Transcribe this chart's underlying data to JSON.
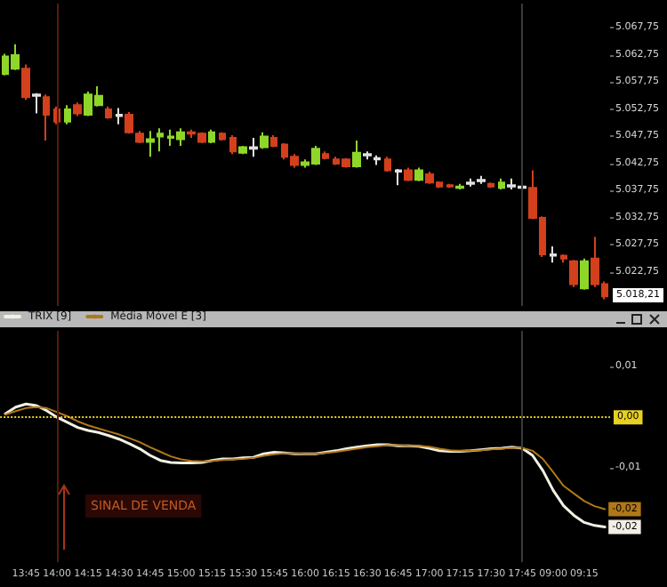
{
  "chart_data": [
    {
      "type": "candlestick",
      "tick_labels": "y",
      "categories": [
        null,
        null,
        "13:45",
        null,
        null,
        "14:00",
        null,
        null,
        "14:15",
        null,
        null,
        "14:30",
        null,
        null,
        "14:45",
        null,
        null,
        "15:00",
        null,
        null,
        "15:15",
        null,
        null,
        "15:30",
        null,
        null,
        "15:45",
        null,
        null,
        "16:00",
        null,
        null,
        "16:15",
        null,
        null,
        "16:30",
        null,
        null,
        "16:45",
        null,
        null,
        "17:00",
        null,
        null,
        "17:15",
        null,
        null,
        "17:30",
        null,
        null,
        "17:45",
        null,
        null,
        "09:00",
        null,
        null,
        "09:15",
        null,
        null
      ],
      "ohlc": [
        [
          5059.25,
          5063,
          5059,
          5062.5
        ],
        [
          5060.25,
          5064.75,
          5060,
          5062.75
        ],
        [
          5060.25,
          5061,
          5054.5,
          5055
        ],
        [
          5055.5,
          5055.75,
          5052,
          5055.25
        ],
        [
          5055,
          5055.5,
          5047,
          5051.75
        ],
        [
          5052.75,
          5053.25,
          5050,
          5050.5
        ],
        [
          5050.5,
          5053.5,
          5050,
          5052.75
        ],
        [
          5053.5,
          5054,
          5051.5,
          5052
        ],
        [
          5051.75,
          5056,
          5051.5,
          5055.5
        ],
        [
          5053.5,
          5057,
          5053.25,
          5055.25
        ],
        [
          5052.75,
          5053.25,
          5051,
          5051.25
        ],
        [
          5051.75,
          5053,
          5050,
          5051.5
        ],
        [
          5051.75,
          5052.25,
          5048.25,
          5048.5
        ],
        [
          5048.25,
          5048.75,
          5046.5,
          5046.75
        ],
        [
          5046.75,
          5048.75,
          5044,
          5047.25
        ],
        [
          5047.75,
          5049.25,
          5045,
          5048.25
        ],
        [
          5047.5,
          5049,
          5046,
          5047.75
        ],
        [
          5047.25,
          5049.25,
          5046,
          5048.5
        ],
        [
          5048.5,
          5049,
          5047.5,
          5048.25
        ],
        [
          5048.25,
          5048.5,
          5046.5,
          5046.75
        ],
        [
          5046.75,
          5049,
          5046.5,
          5048.5
        ],
        [
          5048.25,
          5048.5,
          5047,
          5047.25
        ],
        [
          5047.5,
          5048,
          5044.5,
          5045
        ],
        [
          5044.75,
          5046,
          5044.5,
          5045.75
        ],
        [
          5045.75,
          5047.5,
          5044,
          5045.5
        ],
        [
          5045.75,
          5048.5,
          5045.5,
          5047.75
        ],
        [
          5047.5,
          5048,
          5045.75,
          5046
        ],
        [
          5046.25,
          5046.5,
          5043.5,
          5044
        ],
        [
          5044,
          5044.5,
          5042,
          5042.5
        ],
        [
          5042.5,
          5043.5,
          5042,
          5043
        ],
        [
          5042.75,
          5046,
          5042.5,
          5045.5
        ],
        [
          5044.5,
          5045,
          5043.5,
          5043.75
        ],
        [
          5043.5,
          5044,
          5042.5,
          5042.75
        ],
        [
          5043.5,
          5043.75,
          5042,
          5042.25
        ],
        [
          5042.25,
          5047,
          5042,
          5044.75
        ],
        [
          5044.5,
          5045,
          5043.5,
          5044.25
        ],
        [
          5043.75,
          5044.25,
          5042.5,
          5043.5
        ],
        [
          5043.5,
          5044,
          5041.25,
          5041.5
        ],
        [
          5041.5,
          5041.75,
          5038.75,
          5041.25
        ],
        [
          5041.5,
          5042,
          5039.5,
          5039.75
        ],
        [
          5039.75,
          5042,
          5039.5,
          5041.5
        ],
        [
          5040.75,
          5041.25,
          5039,
          5039.25
        ],
        [
          5039.25,
          5039.5,
          5038.25,
          5038.5
        ],
        [
          5038.75,
          5039,
          5038.25,
          5038.5
        ],
        [
          5038.25,
          5039,
          5038,
          5038.5
        ],
        [
          5039.25,
          5040,
          5038.5,
          5039
        ],
        [
          5039.75,
          5040.5,
          5039,
          5039.5
        ],
        [
          5039,
          5039.25,
          5038.25,
          5038.5
        ],
        [
          5038.25,
          5040,
          5038,
          5039.25
        ],
        [
          5038.75,
          5040,
          5038,
          5038.5
        ],
        [
          5038.5,
          5039,
          5038,
          5038.25
        ],
        [
          5038.25,
          5041.5,
          5032.5,
          5032.75
        ],
        [
          5032.75,
          5033,
          5025.5,
          5026
        ],
        [
          5026,
          5027.5,
          5024.5,
          5025.75
        ],
        [
          5025.75,
          5026,
          5024.5,
          5025.25
        ],
        [
          5024.75,
          5025,
          5020,
          5020.5
        ],
        [
          5019.75,
          5025.25,
          5019.5,
          5024.75
        ],
        [
          5025.25,
          5029.25,
          5020,
          5020.5
        ],
        [
          5020.5,
          5021,
          5017.75,
          5018.25
        ]
      ],
      "colors": [
        "#8fd62a",
        "#8fd62a",
        "#d2401c",
        "#e0e0e0",
        "#d2401c",
        "#d2401c",
        "#8fd62a",
        "#d2401c",
        "#8fd62a",
        "#8fd62a",
        "#d2401c",
        "#e0e0e0",
        "#d2401c",
        "#d2401c",
        "#8fd62a",
        "#8fd62a",
        "#8fd62a",
        "#8fd62a",
        "#d2401c",
        "#d2401c",
        "#8fd62a",
        "#d2401c",
        "#d2401c",
        "#8fd62a",
        "#e0e0e0",
        "#8fd62a",
        "#d2401c",
        "#d2401c",
        "#d2401c",
        "#8fd62a",
        "#8fd62a",
        "#d2401c",
        "#d2401c",
        "#d2401c",
        "#8fd62a",
        "#e0e0e0",
        "#e0e0e0",
        "#d2401c",
        "#e0e0e0",
        "#d2401c",
        "#8fd62a",
        "#d2401c",
        "#d2401c",
        "#d2401c",
        "#8fd62a",
        "#e0e0e0",
        "#e0e0e0",
        "#d2401c",
        "#8fd62a",
        "#e0e0e0",
        "#e0e0e0",
        "#d2401c",
        "#d2401c",
        "#e0e0e0",
        "#d2401c",
        "#d2401c",
        "#8fd62a",
        "#d2401c",
        "#d2401c"
      ],
      "ylim": [
        5016.5,
        5072.25
      ],
      "yticks": [
        {
          "value": 5022.75,
          "label": "5.022,75"
        },
        {
          "value": 5027.75,
          "label": "5.027,75"
        },
        {
          "value": 5032.75,
          "label": "5.032,75"
        },
        {
          "value": 5037.75,
          "label": "5.037,75"
        },
        {
          "value": 5042.75,
          "label": "5.042,75"
        },
        {
          "value": 5047.75,
          "label": "5.047,75"
        },
        {
          "value": 5052.75,
          "label": "5.052,75"
        },
        {
          "value": 5057.75,
          "label": "5.057,75"
        },
        {
          "value": 5062.75,
          "label": "5.062,75"
        },
        {
          "value": 5067.75,
          "label": "5.067,75"
        }
      ],
      "ref_lines": [
        {
          "axis": "x",
          "value": "14:00",
          "color": "#5a1810",
          "line_style": "solid"
        },
        {
          "axis": "x",
          "value": "17:45",
          "color": "#3a3a3a",
          "line_style": "solid"
        }
      ],
      "annotations": [
        "5.018,21"
      ]
    },
    {
      "type": "line",
      "legend": "top left",
      "categories": [
        null,
        null,
        "13:45",
        null,
        null,
        "14:00",
        null,
        null,
        "14:15",
        null,
        null,
        "14:30",
        null,
        null,
        "14:45",
        null,
        null,
        "15:00",
        null,
        null,
        "15:15",
        null,
        null,
        "15:30",
        null,
        null,
        "15:45",
        null,
        null,
        "16:00",
        null,
        null,
        "16:15",
        null,
        null,
        "16:30",
        null,
        null,
        "16:45",
        null,
        null,
        "17:00",
        null,
        null,
        "17:15",
        null,
        null,
        "17:30",
        null,
        null,
        "17:45",
        null,
        null,
        "09:00",
        null,
        null,
        "09:15",
        null,
        null
      ],
      "series": [
        {
          "name": "TRIX [9]",
          "color": "#f2f0e4",
          "values": [
            0.0007,
            0.002,
            0.0026,
            0.0023,
            0.0013,
            0,
            -0.001,
            -0.002,
            -0.0026,
            -0.003,
            -0.0036,
            -0.0043,
            -0.0052,
            -0.0062,
            -0.0075,
            -0.0085,
            -0.0089,
            -0.009,
            -0.009,
            -0.0089,
            -0.0085,
            -0.0082,
            -0.0082,
            -0.008,
            -0.0079,
            -0.0072,
            -0.0069,
            -0.007,
            -0.0072,
            -0.0072,
            -0.0072,
            -0.0069,
            -0.0066,
            -0.0062,
            -0.0059,
            -0.0056,
            -0.0054,
            -0.0054,
            -0.0056,
            -0.0056,
            -0.0057,
            -0.0061,
            -0.0066,
            -0.0067,
            -0.0067,
            -0.0066,
            -0.0064,
            -0.0062,
            -0.0061,
            -0.0059,
            -0.0061,
            -0.0075,
            -0.0105,
            -0.0144,
            -0.0174,
            -0.0193,
            -0.0207,
            -0.0213,
            -0.0216
          ],
          "value_labels": [
            null,
            null,
            null,
            null,
            null,
            null,
            null,
            null,
            null,
            null,
            null,
            null,
            null,
            null,
            null,
            null,
            null,
            null,
            null,
            null,
            null,
            null,
            null,
            null,
            null,
            null,
            null,
            null,
            null,
            null,
            null,
            null,
            null,
            null,
            null,
            null,
            null,
            null,
            null,
            null,
            null,
            null,
            null,
            null,
            null,
            null,
            null,
            null,
            null,
            null,
            null,
            null,
            null,
            null,
            null,
            null,
            null,
            null,
            "-0,02"
          ]
        },
        {
          "name": "Média Móvel E [3]",
          "color": "#b07818",
          "values": [
            0.0005,
            0.0012,
            0.0018,
            0.002,
            0.0018,
            0.001,
            0.0002,
            -0.0008,
            -0.0016,
            -0.0022,
            -0.0028,
            -0.0034,
            -0.0041,
            -0.0049,
            -0.0059,
            -0.0068,
            -0.0077,
            -0.0083,
            -0.0086,
            -0.0087,
            -0.0086,
            -0.0084,
            -0.0083,
            -0.0082,
            -0.008,
            -0.0076,
            -0.0073,
            -0.0071,
            -0.0071,
            -0.0072,
            -0.0072,
            -0.007,
            -0.0068,
            -0.0065,
            -0.0062,
            -0.0059,
            -0.0057,
            -0.0055,
            -0.0055,
            -0.0056,
            -0.0056,
            -0.0058,
            -0.0062,
            -0.0065,
            -0.0066,
            -0.0066,
            -0.0065,
            -0.0063,
            -0.0062,
            -0.006,
            -0.006,
            -0.0066,
            -0.0082,
            -0.0108,
            -0.0135,
            -0.015,
            -0.0165,
            -0.0175,
            -0.0181
          ],
          "value_labels": [
            null,
            null,
            null,
            null,
            null,
            null,
            null,
            null,
            null,
            null,
            null,
            null,
            null,
            null,
            null,
            null,
            null,
            null,
            null,
            null,
            null,
            null,
            null,
            null,
            null,
            null,
            null,
            null,
            null,
            null,
            null,
            null,
            null,
            null,
            null,
            null,
            null,
            null,
            null,
            null,
            null,
            null,
            null,
            null,
            null,
            null,
            null,
            null,
            null,
            null,
            null,
            null,
            null,
            null,
            null,
            null,
            null,
            null,
            "-0,02"
          ]
        }
      ],
      "ylim": [
        -0.0285,
        0.017
      ],
      "yticks": [
        {
          "value": -0.01,
          "label": "-0,01"
        },
        {
          "value": 0.01,
          "label": "0,01"
        }
      ],
      "ref_lines": [
        {
          "axis": "y",
          "value": 0,
          "label": "0,00",
          "color": "#e8d020",
          "line_style": "dotted"
        },
        {
          "axis": "x",
          "value": "14:00",
          "color": "#5a1810",
          "line_style": "solid"
        },
        {
          "axis": "x",
          "value": "17:45",
          "color": "#3a3a3a",
          "line_style": "solid"
        }
      ],
      "annotations": [
        "SINAL DE VENDA"
      ]
    }
  ]
}
